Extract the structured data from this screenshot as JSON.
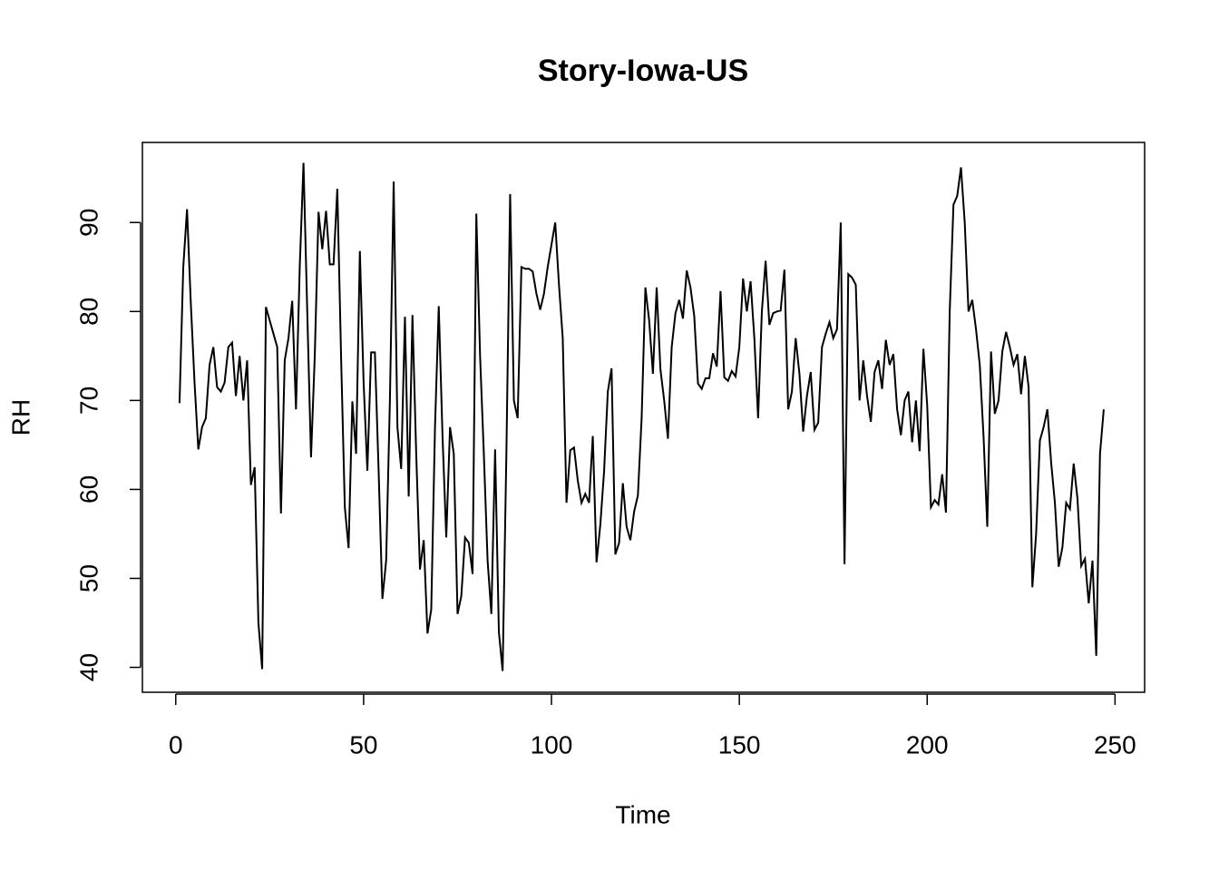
{
  "chart_data": {
    "type": "line",
    "title": "Story-Iowa-US",
    "x_label": "Time",
    "y_label": "RH",
    "x": [
      1,
      2,
      3,
      4,
      5,
      6,
      7,
      8,
      9,
      10,
      11,
      12,
      13,
      14,
      15,
      16,
      17,
      18,
      19,
      20,
      21,
      22,
      23,
      24,
      25,
      26,
      27,
      28,
      29,
      30,
      31,
      32,
      33,
      34,
      35,
      36,
      37,
      38,
      39,
      40,
      41,
      42,
      43,
      44,
      45,
      46,
      47,
      48,
      49,
      50,
      51,
      52,
      53,
      54,
      55,
      56,
      57,
      58,
      59,
      60,
      61,
      62,
      63,
      64,
      65,
      66,
      67,
      68,
      69,
      70,
      71,
      72,
      73,
      74,
      75,
      76,
      77,
      78,
      79,
      80,
      81,
      82,
      83,
      84,
      85,
      86,
      87,
      88,
      89,
      90,
      91,
      92,
      93,
      94,
      95,
      96,
      97,
      98,
      99,
      100,
      101,
      102,
      103,
      104,
      105,
      106,
      107,
      108,
      109,
      110,
      111,
      112,
      113,
      114,
      115,
      116,
      117,
      118,
      119,
      120,
      121,
      122,
      123,
      124,
      125,
      126,
      127,
      128,
      129,
      130,
      131,
      132,
      133,
      134,
      135,
      136,
      137,
      138,
      139,
      140,
      141,
      142,
      143,
      144,
      145,
      146,
      147,
      148,
      149,
      150,
      151,
      152,
      153,
      154,
      155,
      156,
      157,
      158,
      159,
      160,
      161,
      162,
      163,
      164,
      165,
      166,
      167,
      168,
      169,
      170,
      171,
      172,
      173,
      174,
      175,
      176,
      177,
      178,
      179,
      180,
      181,
      182,
      183,
      184,
      185,
      186,
      187,
      188,
      189,
      190,
      191,
      192,
      193,
      194,
      195,
      196,
      197,
      198,
      199,
      200,
      201,
      202,
      203,
      204,
      205,
      206,
      207,
      208,
      209,
      210,
      211,
      212,
      213,
      214,
      215,
      216,
      217,
      218,
      219,
      220,
      221,
      222,
      223,
      224,
      225,
      226,
      227,
      228,
      229,
      230,
      231,
      232,
      233,
      234,
      235,
      236,
      237,
      238,
      239,
      240,
      241,
      242,
      243,
      244,
      245,
      246,
      247
    ],
    "series": [
      {
        "name": "RH",
        "color": "#000000",
        "values": [
          69.7,
          85,
          91.5,
          81,
          72,
          64.5,
          67,
          68,
          74,
          76,
          71.5,
          71,
          72,
          76,
          76.5,
          70.5,
          75,
          70,
          74.5,
          60.5,
          62.5,
          45,
          39.8,
          80.5,
          79,
          77.5,
          76,
          57.3,
          74.5,
          77,
          81.2,
          69,
          85,
          96.7,
          80,
          63.6,
          75,
          91.2,
          87,
          91.3,
          85.3,
          85.3,
          93.8,
          75,
          58,
          53.4,
          69.9,
          64,
          86.8,
          72,
          62.1,
          75.4,
          75.4,
          62,
          47.7,
          52,
          70,
          94.6,
          67,
          62.3,
          79.4,
          59.2,
          79.6,
          64,
          51,
          54.3,
          43.8,
          46.5,
          67,
          80.6,
          66,
          54.6,
          67,
          64,
          46,
          48,
          54.6,
          54,
          50.5,
          91,
          75,
          64,
          52,
          46,
          64.5,
          44,
          39.6,
          64,
          93.2,
          70,
          68,
          85,
          84.8,
          84.8,
          84.5,
          82,
          80.2,
          82,
          85,
          87.5,
          90,
          83,
          77,
          58.5,
          64.4,
          64.7,
          61,
          58.5,
          59.5,
          58.5,
          66,
          51.8,
          56,
          62,
          71,
          73.6,
          52.7,
          54,
          60.7,
          55.8,
          54.3,
          57.5,
          59.3,
          68,
          82.7,
          79,
          73,
          82.7,
          73.5,
          70,
          65.7,
          76,
          79.8,
          81.3,
          79.2,
          84.6,
          82.7,
          79.5,
          71.9,
          71.3,
          72.5,
          72.5,
          75.3,
          73.8,
          82.3,
          72.6,
          72.2,
          73.3,
          72.7,
          76,
          83.7,
          80,
          83.4,
          77,
          68,
          80,
          85.7,
          78.5,
          79.8,
          80,
          80.1,
          84.7,
          69,
          71,
          77,
          73,
          66.5,
          70.5,
          73.2,
          66.7,
          67.5,
          76,
          77.5,
          78.8,
          77,
          78,
          90,
          51.6,
          84.2,
          83.8,
          83,
          70,
          74.5,
          70.5,
          67.6,
          73.2,
          74.5,
          71.3,
          76.8,
          74,
          75.2,
          69,
          66.1,
          70,
          71,
          65.3,
          70,
          64.3,
          75.8,
          69.5,
          58,
          58.8,
          58.3,
          61.7,
          57.4,
          80,
          92,
          93,
          96.2,
          90,
          80,
          81.3,
          78,
          74,
          66,
          55.8,
          75.5,
          68.5,
          70,
          75.5,
          77.7,
          76,
          74,
          75.2,
          70.7,
          75,
          71.5,
          49,
          55,
          65.5,
          67,
          69,
          63,
          58.5,
          51.3,
          53.5,
          58.5,
          57.8,
          62.9,
          59,
          51.4,
          52.2,
          47.2,
          52,
          41.3,
          64,
          69
        ]
      }
    ],
    "xlim": [
      -8.88,
      257.88
    ],
    "ylim": [
      37.2,
      99.0
    ],
    "xticks": [
      0,
      50,
      100,
      150,
      200,
      250
    ],
    "yticks": [
      40,
      50,
      60,
      70,
      80,
      90
    ]
  }
}
